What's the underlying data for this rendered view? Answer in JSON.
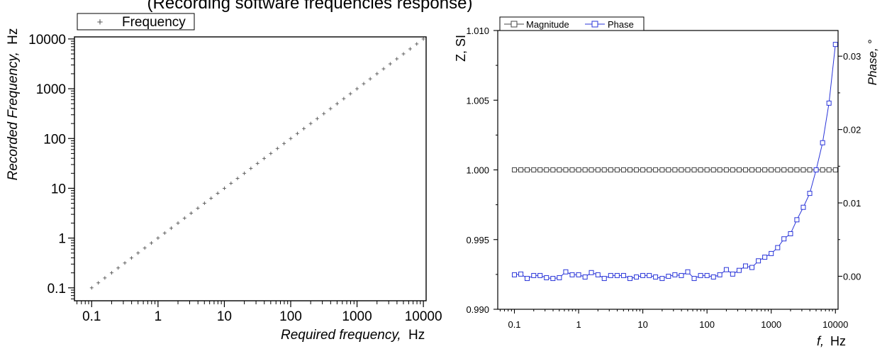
{
  "caption_fragment": "(Recording software frequencies response)",
  "chart_data": [
    {
      "type": "scatter",
      "legend": {
        "entries": [
          "Frequency"
        ],
        "placement": "top-left"
      },
      "xlabel": {
        "italic": "Required frequency,",
        "unit": "Hz"
      },
      "ylabel": {
        "italic": "Recorded Frequency,",
        "unit": "Hz"
      },
      "xscale": "log",
      "yscale": "log",
      "xlim": [
        0.055,
        11000
      ],
      "ylim": [
        0.055,
        11000
      ],
      "xticks": [
        0.1,
        1,
        10,
        100,
        1000,
        10000
      ],
      "xtick_labels": [
        "0.1",
        "1",
        "10",
        "100",
        "1000",
        "10000"
      ],
      "yticks": [
        0.1,
        1,
        10,
        100,
        1000,
        10000
      ],
      "ytick_labels": [
        "0.1",
        "1",
        "10",
        "100",
        "1000",
        "10000"
      ],
      "marker": "+",
      "marker_color": "#555555",
      "series": [
        {
          "name": "Frequency",
          "x": [
            0.1,
            0.126,
            0.158,
            0.2,
            0.251,
            0.316,
            0.398,
            0.501,
            0.631,
            0.794,
            1,
            1.26,
            1.58,
            2,
            2.51,
            3.16,
            3.98,
            5.01,
            6.31,
            7.94,
            10,
            12.6,
            15.8,
            20,
            25.1,
            31.6,
            39.8,
            50.1,
            63.1,
            79.4,
            100,
            126,
            158,
            200,
            251,
            316,
            398,
            501,
            631,
            794,
            1000,
            1260,
            1580,
            2000,
            2510,
            3160,
            3980,
            5010,
            6310,
            7940,
            10000
          ],
          "y": [
            0.1,
            0.126,
            0.158,
            0.2,
            0.251,
            0.316,
            0.398,
            0.501,
            0.631,
            0.794,
            1,
            1.26,
            1.58,
            2,
            2.51,
            3.16,
            3.98,
            5.01,
            6.31,
            7.94,
            10,
            12.6,
            15.8,
            20,
            25.1,
            31.6,
            39.8,
            50.1,
            63.1,
            79.4,
            100,
            126,
            158,
            200,
            251,
            316,
            398,
            501,
            631,
            794,
            1000,
            1260,
            1580,
            2000,
            2510,
            3160,
            3980,
            5010,
            6310,
            7940,
            10000
          ]
        }
      ]
    },
    {
      "type": "line",
      "legend": {
        "entries": [
          "Magnitude",
          "Phase"
        ],
        "placement": "top-left"
      },
      "xlabel": {
        "italic": "f,",
        "unit": "Hz"
      },
      "ylabel": "Z, SI",
      "y2label": "Phase, °",
      "xscale": "log",
      "xlim": [
        0.055,
        11000
      ],
      "ylim": [
        0.99,
        1.01
      ],
      "y2lim": [
        -0.0045,
        0.0335
      ],
      "xticks": [
        0.1,
        1,
        10,
        100,
        1000,
        10000
      ],
      "xtick_labels": [
        "0.1",
        "1",
        "10",
        "100",
        "1000",
        "10000"
      ],
      "yticks": [
        0.99,
        0.995,
        1.0,
        1.005,
        1.01
      ],
      "ytick_labels": [
        "0.990",
        "0.995",
        "1.000",
        "1.005",
        "1.010"
      ],
      "y2ticks": [
        0,
        0.01,
        0.02,
        0.03
      ],
      "y2tick_labels": [
        "0.00",
        "0.01",
        "0.02",
        "0.03"
      ],
      "marker": "open-square",
      "series": [
        {
          "name": "Magnitude",
          "axis": "left",
          "color": "#444444",
          "x": [
            0.1,
            0.126,
            0.158,
            0.2,
            0.251,
            0.316,
            0.398,
            0.501,
            0.631,
            0.794,
            1,
            1.26,
            1.58,
            2,
            2.51,
            3.16,
            3.98,
            5.01,
            6.31,
            7.94,
            10,
            12.6,
            15.8,
            20,
            25.1,
            31.6,
            39.8,
            50.1,
            63.1,
            79.4,
            100,
            126,
            158,
            200,
            251,
            316,
            398,
            501,
            631,
            794,
            1000,
            1260,
            1580,
            2000,
            2510,
            3160,
            3980,
            5010,
            6310,
            7940,
            10000
          ],
          "y": [
            1,
            1,
            1,
            1,
            1,
            1,
            1,
            1,
            1,
            1,
            1,
            1,
            1,
            1,
            1,
            1,
            1,
            1,
            1,
            1,
            1,
            1,
            1,
            1,
            1,
            1,
            1,
            1,
            1,
            1,
            1,
            1,
            1,
            1,
            1,
            1,
            1,
            1,
            1,
            1,
            1,
            1,
            1,
            1,
            1,
            1,
            1,
            1,
            1,
            1,
            1
          ]
        },
        {
          "name": "Phase",
          "axis": "right",
          "color": "#2a35d9",
          "x": [
            0.1,
            0.126,
            0.158,
            0.2,
            0.251,
            0.316,
            0.398,
            0.501,
            0.631,
            0.794,
            1,
            1.26,
            1.58,
            2,
            2.51,
            3.16,
            3.98,
            5.01,
            6.31,
            7.94,
            10,
            12.6,
            15.8,
            20,
            25.1,
            31.6,
            39.8,
            50.1,
            63.1,
            79.4,
            100,
            126,
            158,
            200,
            251,
            316,
            398,
            501,
            631,
            794,
            1000,
            1260,
            1580,
            2000,
            2510,
            3160,
            3980,
            5010,
            6310,
            7940,
            10000
          ],
          "y": [
            0.0002,
            0.0003,
            -0.0003,
            0.0001,
            0.0001,
            -0.0002,
            -0.0003,
            -0.0002,
            0.0006,
            0.0002,
            0.0002,
            -0.0001,
            0.0005,
            0.0002,
            -0.0003,
            0.0001,
            0.0001,
            0.0001,
            -0.0003,
            -0.0001,
            0.0001,
            0.0001,
            -0.0001,
            -0.0003,
            0.0,
            0.0002,
            0.0001,
            0.0006,
            -0.0003,
            0.0001,
            0.0001,
            -0.0001,
            0.0002,
            0.0009,
            0.0003,
            0.0008,
            0.0014,
            0.0012,
            0.0021,
            0.0026,
            0.0031,
            0.0039,
            0.0051,
            0.0058,
            0.0077,
            0.0094,
            0.0113,
            0.0145,
            0.0182,
            0.0236,
            0.0316
          ]
        }
      ]
    }
  ]
}
